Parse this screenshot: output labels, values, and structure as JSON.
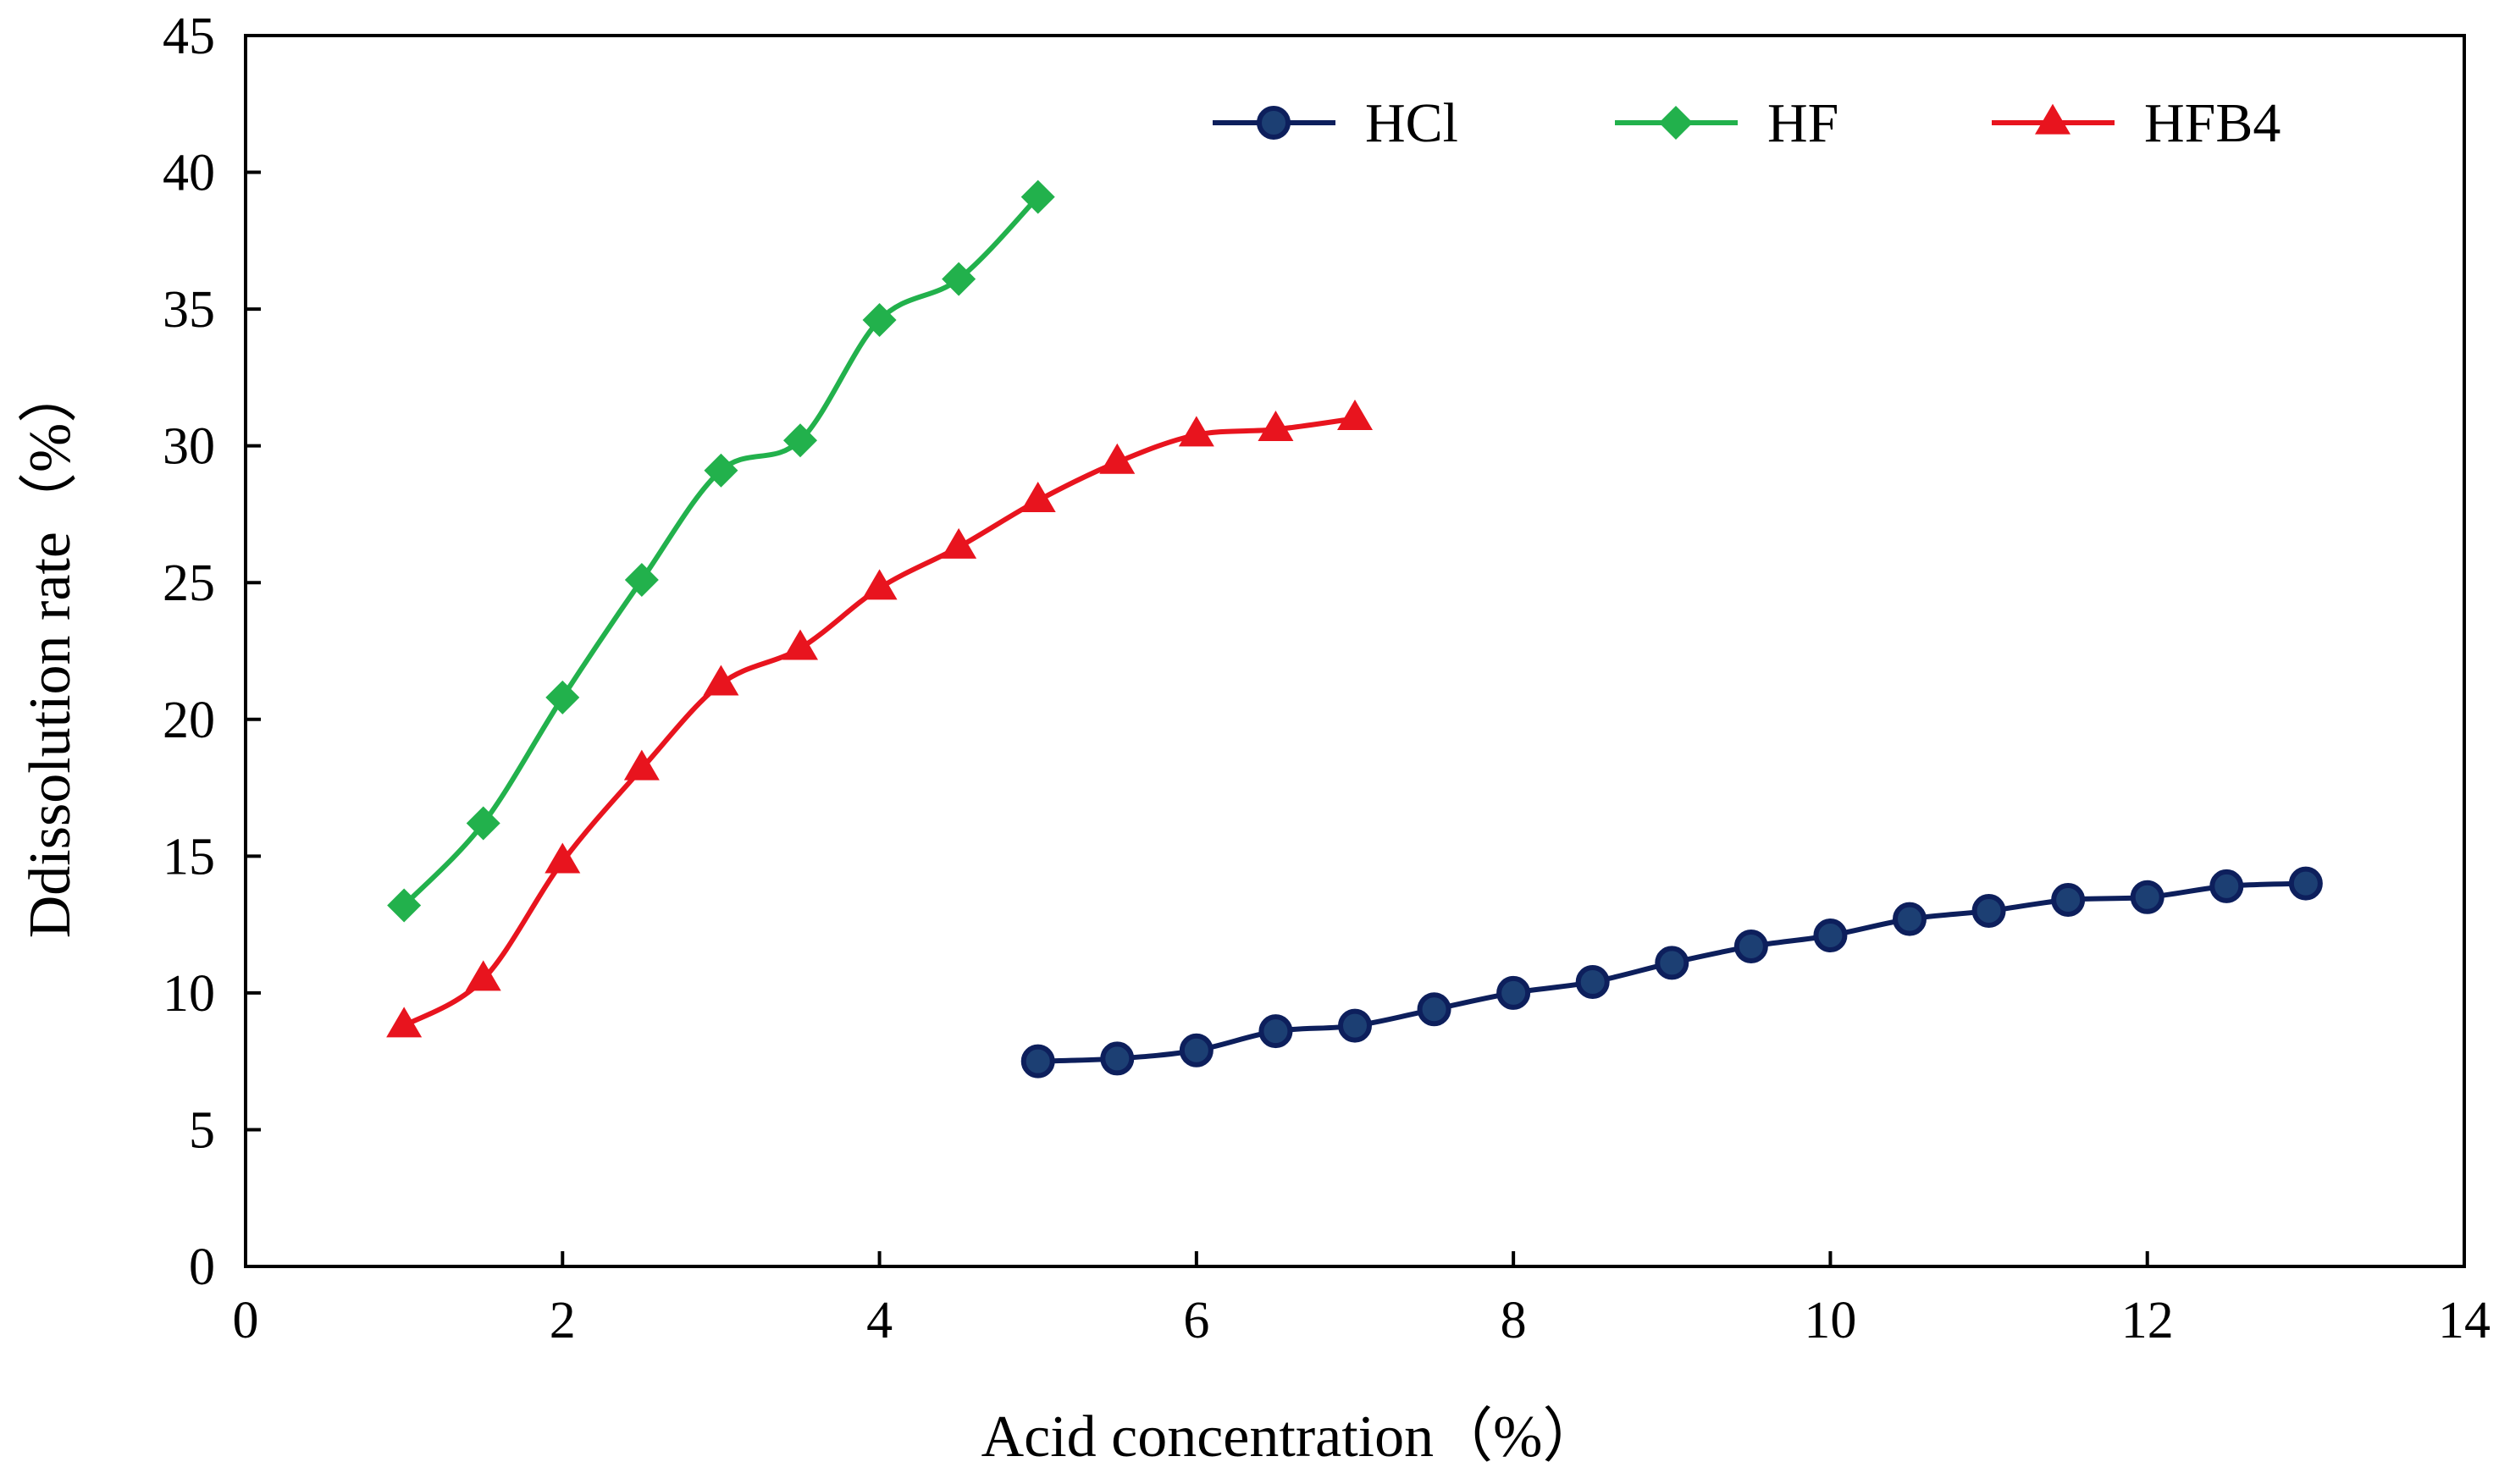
{
  "chart_data": {
    "type": "line",
    "title": "",
    "xlabel": "Acid concentration（%）",
    "ylabel": "Ddissolution rate（%）",
    "xlim": [
      0,
      14
    ],
    "ylim": [
      0,
      45
    ],
    "xticks": [
      "0",
      "2",
      "4",
      "6",
      "8",
      "10",
      "12",
      "14"
    ],
    "yticks": [
      "0",
      "5",
      "10",
      "15",
      "20",
      "25",
      "30",
      "35",
      "40",
      "45"
    ],
    "legend_position": "top-right",
    "grid": false,
    "series": [
      {
        "name": "HCl",
        "color": "#0d1f5c",
        "marker": "circle",
        "x": [
          5,
          5.5,
          6,
          6.5,
          7,
          7.5,
          8,
          8.5,
          9,
          9.5,
          10,
          10.5,
          11,
          11.5,
          12,
          12.5,
          13
        ],
        "y": [
          7.5,
          7.6,
          7.9,
          8.6,
          8.8,
          9.4,
          10.0,
          10.4,
          11.1,
          11.7,
          12.1,
          12.7,
          13.0,
          13.4,
          13.5,
          13.9,
          14.0
        ]
      },
      {
        "name": "HF",
        "color": "#22b14c",
        "marker": "diamond",
        "x": [
          1,
          1.5,
          2,
          2.5,
          3,
          3.5,
          4,
          4.5,
          5
        ],
        "y": [
          13.2,
          16.2,
          20.8,
          25.1,
          29.1,
          30.2,
          34.6,
          36.1,
          39.1
        ]
      },
      {
        "name": "HFB4",
        "color": "#e8141e",
        "marker": "triangle",
        "x": [
          1,
          1.5,
          2,
          2.5,
          3,
          3.5,
          4,
          4.5,
          5,
          5.5,
          6,
          6.5,
          7
        ],
        "y": [
          8.8,
          10.5,
          14.8,
          18.2,
          21.3,
          22.6,
          24.8,
          26.3,
          28.0,
          29.4,
          30.4,
          30.6,
          31.0
        ]
      }
    ]
  }
}
